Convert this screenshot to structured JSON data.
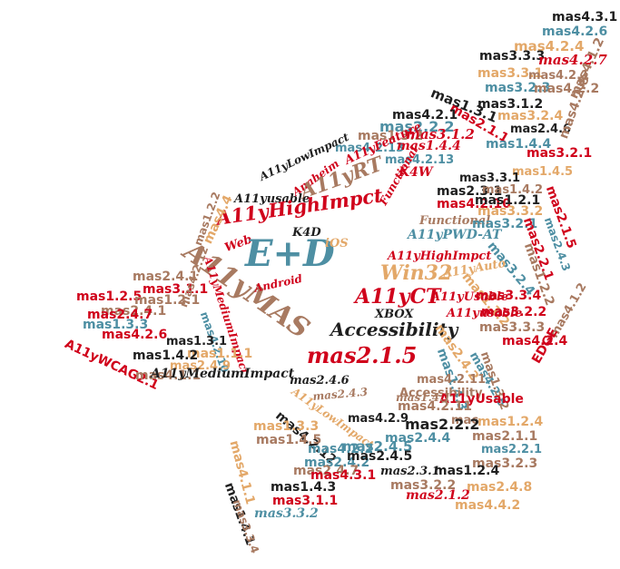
{
  "colors": {
    "red": "#d0021b",
    "brown": "#a87a61",
    "teal": "#4e8fa3",
    "tan": "#e3a869",
    "black": "#1f1f1f"
  },
  "words": [
    {
      "text": "mas4.3.1",
      "color": "black"
    },
    {
      "text": "mas4.2.6",
      "color": "teal"
    },
    {
      "text": "mas4.2.4",
      "color": "tan"
    },
    {
      "text": "mas3.3.3",
      "color": "black"
    },
    {
      "text": "mas4.2.7",
      "color": "red"
    },
    {
      "text": "mas3.3.1",
      "color": "tan"
    },
    {
      "text": "mas4.2.1",
      "color": "brown"
    },
    {
      "text": "mas3.2.3",
      "color": "teal"
    },
    {
      "text": "mas4.2.2",
      "color": "brown"
    },
    {
      "text": "mas1.3.1",
      "color": "black"
    },
    {
      "text": "mas3.1.2",
      "color": "black"
    },
    {
      "text": "mas2.1.1",
      "color": "red"
    },
    {
      "text": "mas4.1.2",
      "color": "brown"
    },
    {
      "text": "mas4.2.1",
      "color": "black"
    },
    {
      "text": "mas2.2.2",
      "color": "teal"
    },
    {
      "text": "mas3.2.4",
      "color": "tan"
    },
    {
      "text": "mas1.3.2",
      "color": "brown"
    },
    {
      "text": "mas3.1.2",
      "color": "red"
    },
    {
      "text": "mas2.4.6",
      "color": "black"
    },
    {
      "text": "mas4.2.13",
      "color": "teal"
    },
    {
      "text": "mas1.4.4",
      "color": "red"
    },
    {
      "text": "mas1.4.4",
      "color": "teal"
    },
    {
      "text": "mas4.2.8",
      "color": "brown"
    },
    {
      "text": "mas4.2.13",
      "color": "teal"
    },
    {
      "text": "mas3.2.1",
      "color": "red"
    },
    {
      "text": "A11yFeature",
      "color": "red"
    },
    {
      "text": "K4W",
      "color": "red"
    },
    {
      "text": "mas1.4.5",
      "color": "tan"
    },
    {
      "text": "Anaheim",
      "color": "red"
    },
    {
      "text": "A11yLowImpact",
      "color": "black"
    },
    {
      "text": "mas3.3.1",
      "color": "black"
    },
    {
      "text": "mas2.3.1",
      "color": "black"
    },
    {
      "text": "mas1.4.2",
      "color": "brown"
    },
    {
      "text": "A11yRT",
      "color": "brown"
    },
    {
      "text": "Functional",
      "color": "red"
    },
    {
      "text": "A11yusable",
      "color": "black"
    },
    {
      "text": "mas4.2.10",
      "color": "red"
    },
    {
      "text": "mas1.2.1",
      "color": "black"
    },
    {
      "text": "mas2.1.5",
      "color": "red"
    },
    {
      "text": "mas3.3.2",
      "color": "tan"
    },
    {
      "text": "A11yHighImpct",
      "color": "red"
    },
    {
      "text": "Functional",
      "color": "brown"
    },
    {
      "text": "mas3.2.1",
      "color": "teal"
    },
    {
      "text": "mas2.4.3",
      "color": "teal"
    },
    {
      "text": "mas2.2.1",
      "color": "red"
    },
    {
      "text": "K4D",
      "color": "black"
    },
    {
      "text": "A11yPWD-AT",
      "color": "teal"
    },
    {
      "text": "mas4.4",
      "color": "tan"
    },
    {
      "text": "Web",
      "color": "red"
    },
    {
      "text": "E+D",
      "color": "teal"
    },
    {
      "text": "iOS",
      "color": "tan"
    },
    {
      "text": "mas3.2.4",
      "color": "teal"
    },
    {
      "text": "mas1.2.2",
      "color": "brown"
    },
    {
      "text": "mas1.2.2",
      "color": "brown"
    },
    {
      "text": "A11yMAS",
      "color": "brown"
    },
    {
      "text": "A11yHighImpct",
      "color": "red"
    },
    {
      "text": "Win32",
      "color": "tan"
    },
    {
      "text": "mas2.4.1",
      "color": "brown"
    },
    {
      "text": "A11yAuto",
      "color": "tan"
    },
    {
      "text": "mas1.1.2",
      "color": "tan"
    },
    {
      "text": "A11yMediumImpact",
      "color": "red"
    },
    {
      "text": "Android",
      "color": "red"
    },
    {
      "text": "mas3.1.1",
      "color": "red"
    },
    {
      "text": "mas1.2.5",
      "color": "red"
    },
    {
      "text": "mas1.2.1",
      "color": "brown"
    },
    {
      "text": "A11yCT",
      "color": "red"
    },
    {
      "text": "A11yUsable",
      "color": "red"
    },
    {
      "text": "mas3.3.4",
      "color": "red"
    },
    {
      "text": "mas2.4.1",
      "color": "brown"
    },
    {
      "text": "mas4.2.12",
      "color": "brown"
    },
    {
      "text": "mas2.4.7",
      "color": "red"
    },
    {
      "text": "mas1.3.3",
      "color": "teal"
    },
    {
      "text": "mas4.2.10",
      "color": "teal"
    },
    {
      "text": "XBOX",
      "color": "black"
    },
    {
      "text": "A11yusable",
      "color": "red"
    },
    {
      "text": "mas3.2.2",
      "color": "red"
    },
    {
      "text": "mas4.2.6",
      "color": "red"
    },
    {
      "text": "mas1.3.1",
      "color": "black"
    },
    {
      "text": "Accessibility",
      "color": "black"
    },
    {
      "text": "mas3.3.3",
      "color": "brown"
    },
    {
      "text": "mas2.4.2",
      "color": "tan"
    },
    {
      "text": "mas4.2.4",
      "color": "red"
    },
    {
      "text": "mas4.1.2",
      "color": "brown"
    },
    {
      "text": "mas1.1.1",
      "color": "tan"
    },
    {
      "text": "mas1.4.2",
      "color": "black"
    },
    {
      "text": "mas2.4.9",
      "color": "tan"
    },
    {
      "text": "A11yWCAG2.1",
      "color": "red"
    },
    {
      "text": "mas2.1.5",
      "color": "red"
    },
    {
      "text": "mas1.4.3",
      "color": "teal"
    },
    {
      "text": "mas4.2.5",
      "color": "teal"
    },
    {
      "text": "mas1.3.2",
      "color": "brown"
    },
    {
      "text": "mas4.1.1",
      "color": "brown"
    },
    {
      "text": "EDGE",
      "color": "red"
    },
    {
      "text": "A11yMediumImpact",
      "color": "black"
    },
    {
      "text": "mas2.4.6",
      "color": "black"
    },
    {
      "text": "mas4.2.11",
      "color": "brown"
    },
    {
      "text": "Accessibility",
      "color": "brown"
    },
    {
      "text": "A11yLowImpact",
      "color": "tan"
    },
    {
      "text": "mas2.4.3",
      "color": "brown"
    },
    {
      "text": "A11yUsable",
      "color": "red"
    },
    {
      "text": "mas1.4.1",
      "color": "brown"
    },
    {
      "text": "mas4.2.11",
      "color": "brown"
    },
    {
      "text": "mas4.2.12",
      "color": "black"
    },
    {
      "text": "mas4.2.9",
      "color": "black"
    },
    {
      "text": "mac",
      "color": "brown"
    },
    {
      "text": "mas2.2.2",
      "color": "black"
    },
    {
      "text": "mas1.2.4",
      "color": "tan"
    },
    {
      "text": "mas1.3.3",
      "color": "tan"
    },
    {
      "text": "mas1.4.5",
      "color": "brown"
    },
    {
      "text": "mas2.4.4",
      "color": "teal"
    },
    {
      "text": "mas2.1.1",
      "color": "brown"
    },
    {
      "text": "mas4.2.2",
      "color": "teal"
    },
    {
      "text": "mas2.2.1",
      "color": "teal"
    },
    {
      "text": "mas2.4.5",
      "color": "teal"
    },
    {
      "text": "mas2.4.2",
      "color": "teal"
    },
    {
      "text": "mas2.4.5",
      "color": "black"
    },
    {
      "text": "mas2.4.7",
      "color": "brown"
    },
    {
      "text": "mas3.2.3",
      "color": "brown"
    },
    {
      "text": "mas4.1.1",
      "color": "tan"
    },
    {
      "text": "mas4.3.1",
      "color": "red"
    },
    {
      "text": "mas2.3.1",
      "color": "black"
    },
    {
      "text": "mas1.2.4",
      "color": "black"
    },
    {
      "text": "mas1.4.3",
      "color": "black"
    },
    {
      "text": "mas3.2.2",
      "color": "brown"
    },
    {
      "text": "mas2.4.8",
      "color": "tan"
    },
    {
      "text": "mas1.4.1",
      "color": "black"
    },
    {
      "text": "mas3.1.1",
      "color": "red"
    },
    {
      "text": "mas2.1.2",
      "color": "red"
    },
    {
      "text": "mas3.3.2",
      "color": "teal"
    },
    {
      "text": "mas4.4.2",
      "color": "tan"
    },
    {
      "text": "mas3.3.4",
      "color": "brown"
    }
  ]
}
